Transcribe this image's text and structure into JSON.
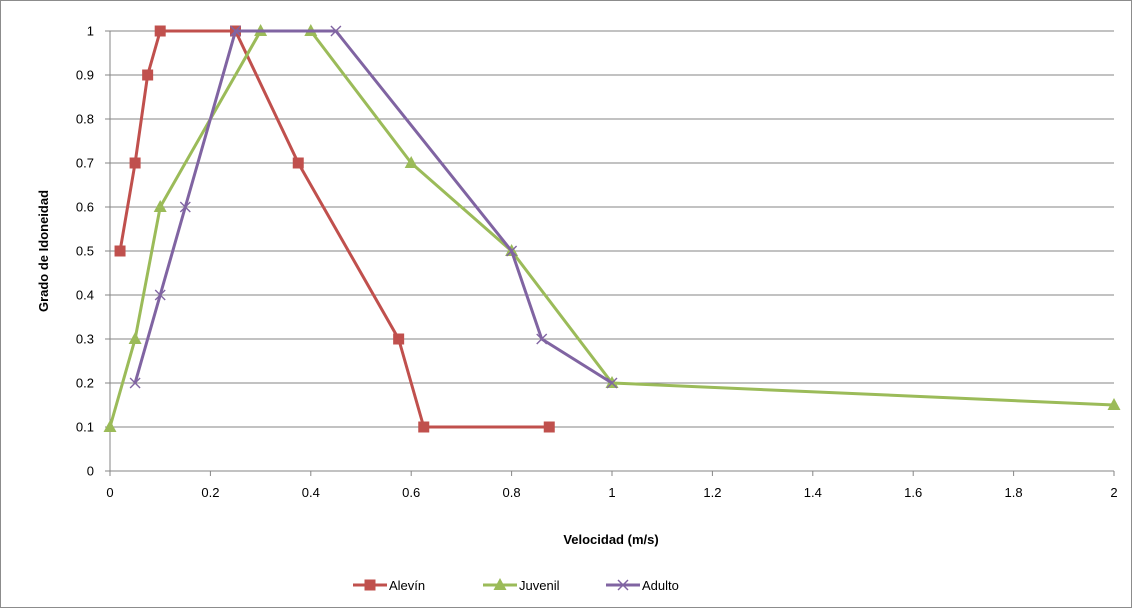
{
  "chart_data": {
    "type": "line",
    "title": "",
    "xlabel": "Velocidad (m/s)",
    "ylabel": "Grado de Idoneidad",
    "xlim": [
      0,
      2
    ],
    "ylim": [
      0,
      1
    ],
    "x_ticks": [
      "0",
      "0.2",
      "0.4",
      "0.6",
      "0.8",
      "1",
      "1.2",
      "1.4",
      "1.6",
      "1.8",
      "2"
    ],
    "y_ticks": [
      "0",
      "0.1",
      "0.2",
      "0.3",
      "0.4",
      "0.5",
      "0.6",
      "0.7",
      "0.8",
      "0.9",
      "1"
    ],
    "grid": "horizontal",
    "legend_position": "bottom",
    "series": [
      {
        "name": "Alevín",
        "color": "#c0504d",
        "marker": "square",
        "points": [
          [
            0.02,
            0.5
          ],
          [
            0.05,
            0.7
          ],
          [
            0.075,
            0.9
          ],
          [
            0.1,
            1.0
          ],
          [
            0.25,
            1.0
          ],
          [
            0.375,
            0.7
          ],
          [
            0.575,
            0.3
          ],
          [
            0.625,
            0.1
          ],
          [
            0.875,
            0.1
          ]
        ]
      },
      {
        "name": "Juvenil",
        "color": "#9bbb59",
        "marker": "triangle",
        "points": [
          [
            0.0,
            0.1
          ],
          [
            0.05,
            0.3
          ],
          [
            0.1,
            0.6
          ],
          [
            0.3,
            1.0
          ],
          [
            0.4,
            1.0
          ],
          [
            0.6,
            0.7
          ],
          [
            0.8,
            0.5
          ],
          [
            1.0,
            0.2
          ],
          [
            2.0,
            0.15
          ]
        ]
      },
      {
        "name": "Adulto",
        "color": "#8064a2",
        "marker": "x",
        "points": [
          [
            0.05,
            0.2
          ],
          [
            0.1,
            0.4
          ],
          [
            0.15,
            0.6
          ],
          [
            0.25,
            1.0
          ],
          [
            0.45,
            1.0
          ],
          [
            0.8,
            0.5
          ],
          [
            0.86,
            0.3
          ],
          [
            1.0,
            0.2
          ]
        ]
      }
    ]
  }
}
